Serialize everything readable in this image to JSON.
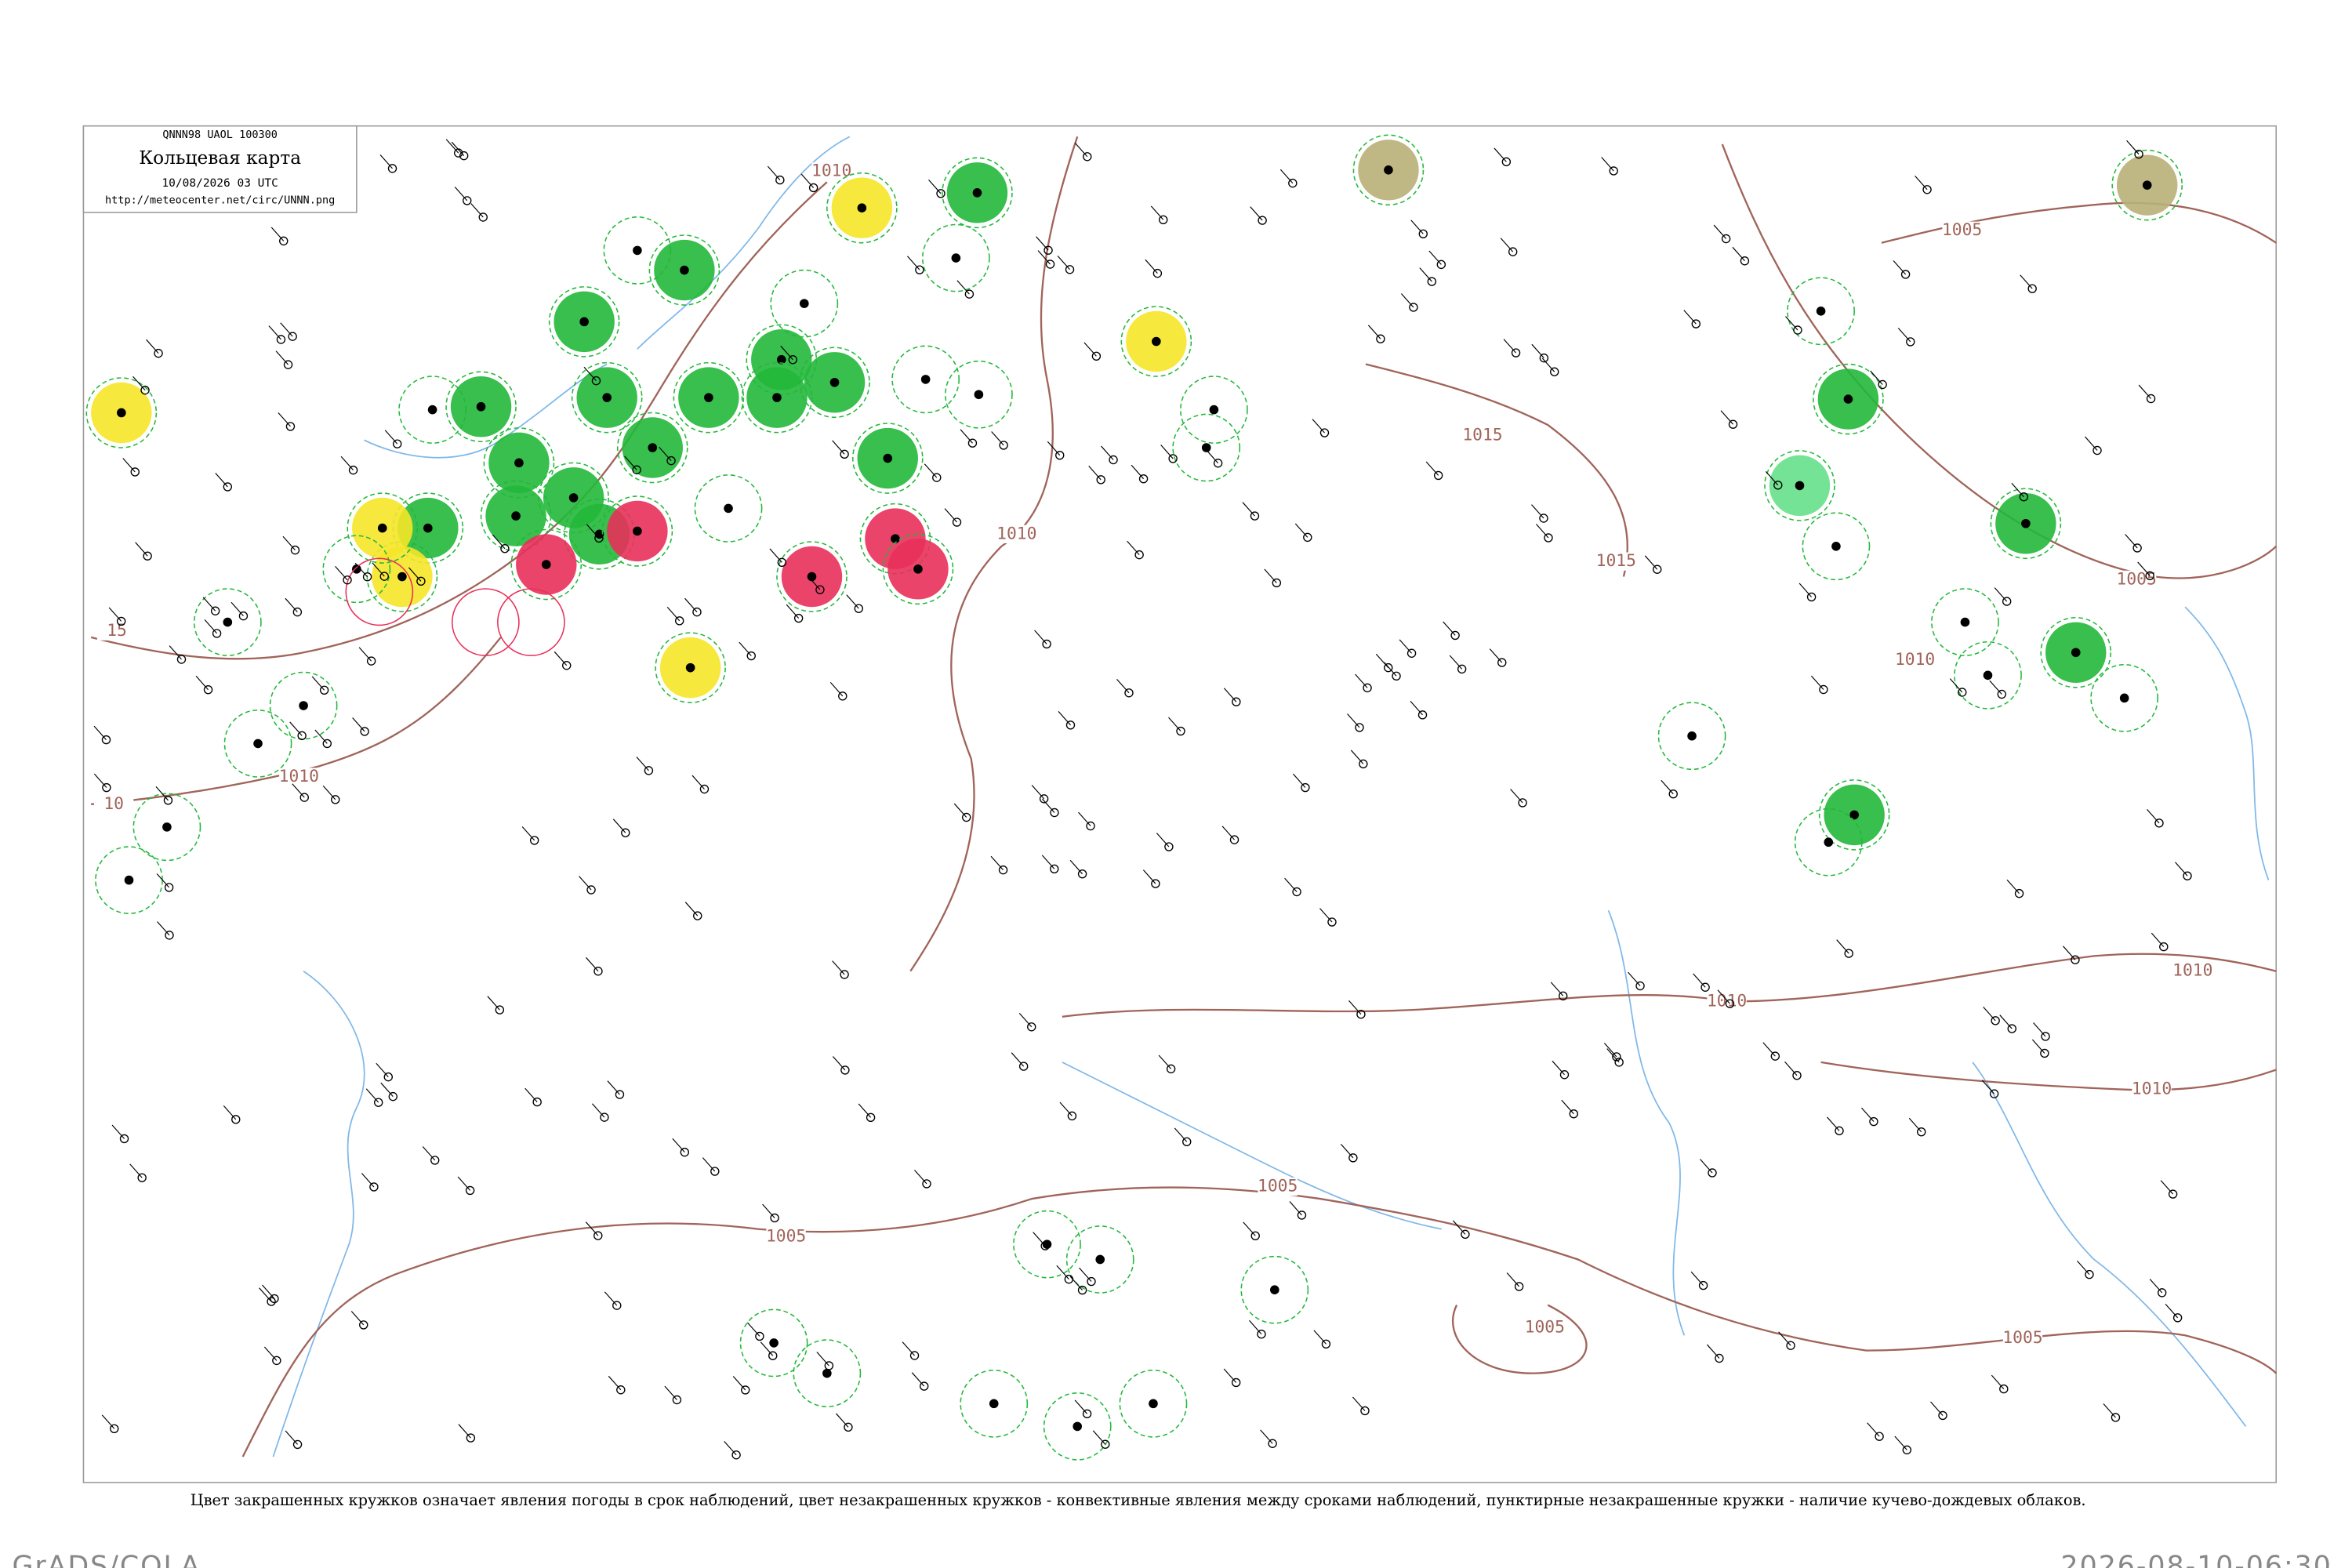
{
  "header": {
    "code": "QNNN98  UAOL  100300",
    "title": "Кольцевая карта",
    "date": "10/08/2026 03 UTC",
    "url": "http://meteocenter.net/circ/UNNN.png"
  },
  "isobar_labels": [
    "1005",
    "1005",
    "1010",
    "1015",
    "1015",
    "1010",
    "1010",
    "1010",
    "1010",
    "1005",
    "1005",
    "1005",
    "1005",
    "1010",
    "15",
    "10",
    "1010"
  ],
  "caption": "Цвет закрашенных кружков означает явления погоды в срок наблюдений, цвет незакрашенных кружков - конвективные явления между сроками наблюдений, пунктирные незакрашенные кружки - наличие кучево-дождевых облаков.",
  "footer": {
    "left": "GrADS/COLA",
    "right": "2026-08-10-06:30"
  }
}
